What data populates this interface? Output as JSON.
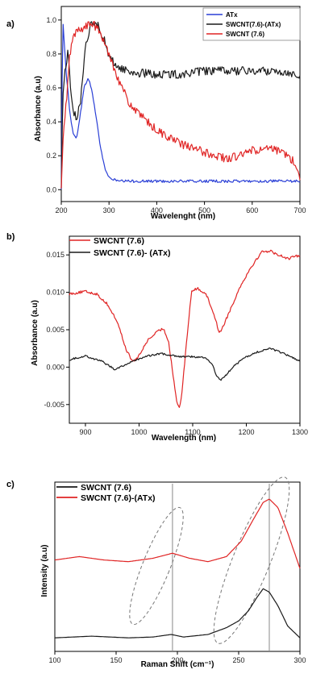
{
  "colors": {
    "blue": "#2a3fd6",
    "black": "#1a1a1a",
    "red": "#e02424"
  },
  "chart_data": [
    {
      "panel_label": "a)",
      "type": "line",
      "xlabel": "Wavelenght (nm)",
      "ylabel": "Absorbance (a.u)",
      "xlim": [
        200,
        700
      ],
      "ylim": [
        -0.07,
        1.08
      ],
      "xticks": [
        200,
        300,
        400,
        500,
        600,
        700
      ],
      "yticks": [
        0.0,
        0.2,
        0.4,
        0.6,
        0.8,
        1.0
      ],
      "xtick_labels": [
        "200",
        "300",
        "400",
        "500",
        "600",
        "700"
      ],
      "ytick_labels": [
        "0.0",
        "0.2",
        "0.4",
        "0.6",
        "0.8",
        "1.0"
      ],
      "legend": {
        "placement": "top-right",
        "boxed": true
      },
      "series": [
        {
          "name": "ATx",
          "color": "#2a3fd6",
          "noise": 0.008,
          "points": [
            [
              200,
              0.0
            ],
            [
              203,
              1.02
            ],
            [
              210,
              0.7
            ],
            [
              218,
              0.45
            ],
            [
              226,
              0.32
            ],
            [
              232,
              0.3
            ],
            [
              240,
              0.45
            ],
            [
              248,
              0.6
            ],
            [
              256,
              0.66
            ],
            [
              263,
              0.6
            ],
            [
              272,
              0.45
            ],
            [
              282,
              0.25
            ],
            [
              292,
              0.12
            ],
            [
              300,
              0.07
            ],
            [
              320,
              0.05
            ],
            [
              360,
              0.05
            ],
            [
              420,
              0.05
            ],
            [
              500,
              0.05
            ],
            [
              560,
              0.05
            ],
            [
              620,
              0.05
            ],
            [
              680,
              0.05
            ],
            [
              700,
              0.05
            ]
          ]
        },
        {
          "name": "SWCNT(7.6)-(ATx)",
          "color": "#1a1a1a",
          "noise": 0.025,
          "points": [
            [
              200,
              0.0
            ],
            [
              203,
              0.55
            ],
            [
              208,
              0.7
            ],
            [
              214,
              0.82
            ],
            [
              220,
              0.58
            ],
            [
              226,
              0.45
            ],
            [
              232,
              0.42
            ],
            [
              240,
              0.5
            ],
            [
              250,
              0.85
            ],
            [
              262,
              0.97
            ],
            [
              272,
              0.98
            ],
            [
              280,
              0.96
            ],
            [
              290,
              0.88
            ],
            [
              300,
              0.78
            ],
            [
              320,
              0.72
            ],
            [
              350,
              0.69
            ],
            [
              400,
              0.68
            ],
            [
              450,
              0.68
            ],
            [
              500,
              0.7
            ],
            [
              550,
              0.7
            ],
            [
              600,
              0.7
            ],
            [
              650,
              0.7
            ],
            [
              700,
              0.68
            ]
          ]
        },
        {
          "name": "SWCNT (7.6)",
          "color": "#e02424",
          "noise": 0.025,
          "points": [
            [
              200,
              0.0
            ],
            [
              204,
              0.3
            ],
            [
              210,
              0.5
            ],
            [
              218,
              0.8
            ],
            [
              225,
              0.9
            ],
            [
              235,
              0.94
            ],
            [
              250,
              0.96
            ],
            [
              265,
              0.98
            ],
            [
              275,
              0.95
            ],
            [
              285,
              0.9
            ],
            [
              300,
              0.8
            ],
            [
              320,
              0.65
            ],
            [
              340,
              0.52
            ],
            [
              360,
              0.45
            ],
            [
              400,
              0.35
            ],
            [
              450,
              0.27
            ],
            [
              500,
              0.22
            ],
            [
              550,
              0.18
            ],
            [
              600,
              0.23
            ],
            [
              640,
              0.24
            ],
            [
              670,
              0.21
            ],
            [
              690,
              0.16
            ],
            [
              700,
              0.05
            ]
          ]
        }
      ]
    },
    {
      "panel_label": "b)",
      "type": "line",
      "xlabel": "Wavelength (nm)",
      "ylabel": "Absorbance (a.u)",
      "xlim": [
        870,
        1300
      ],
      "ylim": [
        -0.0075,
        0.0175
      ],
      "xticks": [
        900,
        1000,
        1100,
        1200,
        1300
      ],
      "yticks": [
        -0.005,
        0.0,
        0.005,
        0.01,
        0.015
      ],
      "xtick_labels": [
        "900",
        "1000",
        "1100",
        "1200",
        "1300"
      ],
      "ytick_labels": [
        "-0.005",
        "0.000",
        "0.005",
        "0.010",
        "0.015"
      ],
      "legend": {
        "placement": "top-left",
        "boxed": false
      },
      "series": [
        {
          "name": "SWCNT (7.6)",
          "color": "#e02424",
          "noise": 0.00018,
          "points": [
            [
              870,
              0.0098
            ],
            [
              900,
              0.0101
            ],
            [
              920,
              0.0098
            ],
            [
              940,
              0.0085
            ],
            [
              960,
              0.006
            ],
            [
              975,
              0.0025
            ],
            [
              988,
              0.0007
            ],
            [
              1000,
              0.0015
            ],
            [
              1015,
              0.0035
            ],
            [
              1030,
              0.0045
            ],
            [
              1045,
              0.0052
            ],
            [
              1055,
              0.0035
            ],
            [
              1063,
              -0.0008
            ],
            [
              1070,
              -0.0045
            ],
            [
              1075,
              -0.0055
            ],
            [
              1080,
              -0.0035
            ],
            [
              1088,
              0.003
            ],
            [
              1098,
              0.0102
            ],
            [
              1110,
              0.0105
            ],
            [
              1125,
              0.0098
            ],
            [
              1140,
              0.007
            ],
            [
              1150,
              0.0045
            ],
            [
              1160,
              0.006
            ],
            [
              1175,
              0.0085
            ],
            [
              1190,
              0.011
            ],
            [
              1210,
              0.0135
            ],
            [
              1230,
              0.0155
            ],
            [
              1245,
              0.0155
            ],
            [
              1260,
              0.015
            ],
            [
              1280,
              0.0145
            ],
            [
              1300,
              0.015
            ]
          ]
        },
        {
          "name": "SWCNT (7.6)- (ATx)",
          "color": "#1a1a1a",
          "noise": 0.00012,
          "points": [
            [
              870,
              0.001
            ],
            [
              900,
              0.0015
            ],
            [
              930,
              0.0008
            ],
            [
              955,
              -0.0003
            ],
            [
              970,
              0.0002
            ],
            [
              990,
              0.0008
            ],
            [
              1010,
              0.0014
            ],
            [
              1040,
              0.0018
            ],
            [
              1060,
              0.0016
            ],
            [
              1080,
              0.0014
            ],
            [
              1100,
              0.0014
            ],
            [
              1120,
              0.0013
            ],
            [
              1135,
              0.0006
            ],
            [
              1145,
              -0.0012
            ],
            [
              1152,
              -0.0017
            ],
            [
              1160,
              -0.0012
            ],
            [
              1175,
              0.0
            ],
            [
              1195,
              0.0012
            ],
            [
              1220,
              0.002
            ],
            [
              1245,
              0.0025
            ],
            [
              1270,
              0.0018
            ],
            [
              1300,
              0.0008
            ]
          ]
        }
      ]
    },
    {
      "panel_label": "c)",
      "type": "line",
      "xlabel": "Raman Shift (cm⁻¹)",
      "ylabel": "Intensity (a.u)",
      "xlim": [
        100,
        300
      ],
      "ylim": [
        0,
        1
      ],
      "xticks": [
        100,
        150,
        200,
        250,
        300
      ],
      "xtick_labels": [
        "100",
        "150",
        "200",
        "250",
        "300"
      ],
      "yticks_visible": false,
      "legend": {
        "placement": "top-left",
        "boxed": false
      },
      "vertical_lines_at": [
        196,
        275
      ],
      "series": [
        {
          "name": "SWCNT (7.6)",
          "color": "#1a1a1a",
          "noise": 0,
          "points": [
            [
              100,
              0.08
            ],
            [
              130,
              0.09
            ],
            [
              160,
              0.08
            ],
            [
              180,
              0.085
            ],
            [
              195,
              0.1
            ],
            [
              205,
              0.085
            ],
            [
              225,
              0.1
            ],
            [
              240,
              0.14
            ],
            [
              250,
              0.18
            ],
            [
              258,
              0.24
            ],
            [
              265,
              0.32
            ],
            [
              270,
              0.37
            ],
            [
              275,
              0.35
            ],
            [
              282,
              0.27
            ],
            [
              290,
              0.15
            ],
            [
              300,
              0.08
            ]
          ]
        },
        {
          "name": "SWCNT (7.6)-(ATx)",
          "color": "#e02424",
          "noise": 0,
          "points": [
            [
              100,
              0.54
            ],
            [
              120,
              0.56
            ],
            [
              140,
              0.54
            ],
            [
              160,
              0.53
            ],
            [
              180,
              0.55
            ],
            [
              196,
              0.58
            ],
            [
              210,
              0.55
            ],
            [
              225,
              0.53
            ],
            [
              240,
              0.56
            ],
            [
              252,
              0.65
            ],
            [
              262,
              0.78
            ],
            [
              270,
              0.88
            ],
            [
              275,
              0.9
            ],
            [
              282,
              0.85
            ],
            [
              290,
              0.7
            ],
            [
              300,
              0.49
            ]
          ]
        }
      ]
    }
  ]
}
